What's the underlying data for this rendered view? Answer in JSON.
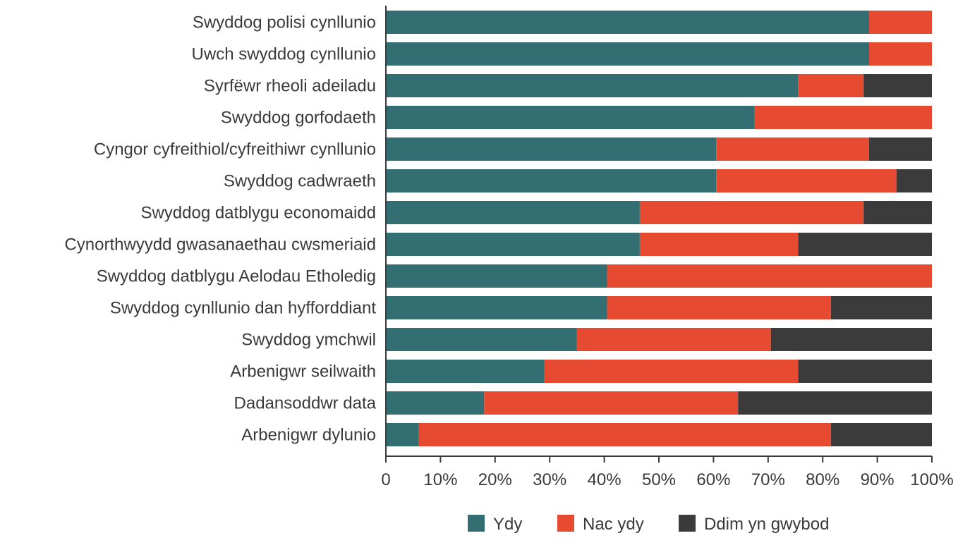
{
  "chart_data": {
    "type": "bar",
    "orientation": "horizontal",
    "stacked": true,
    "percent": true,
    "categories": [
      "Swyddog polisi cynllunio",
      "Uwch swyddog cynllunio",
      "Syrfëwr rheoli adeiladu",
      "Swyddog gorfodaeth",
      "Cyngor cyfreithiol/cyfreithiwr cynllunio",
      "Swyddog cadwraeth",
      "Swyddog datblygu economaidd",
      "Cynorthwyydd gwasanaethau cwsmeriaid",
      "Swyddog datblygu Aelodau Etholedig",
      "Swyddog cynllunio dan hyfforddiant",
      "Swyddog ymchwil",
      "Arbenigwr seilwaith",
      "Dadansoddwr data",
      "Arbenigwr dylunio"
    ],
    "series": [
      {
        "name": "Ydy",
        "color": "#336e73",
        "values": [
          88.5,
          88.5,
          75.5,
          67.5,
          60.5,
          60.5,
          46.5,
          46.5,
          40.5,
          40.5,
          35,
          29,
          18,
          6
        ]
      },
      {
        "name": "Nac ydy",
        "color": "#e64a31",
        "values": [
          11.5,
          11.5,
          12,
          32.5,
          28,
          33,
          41,
          29,
          59.5,
          41,
          35.5,
          46.5,
          46.5,
          75.5
        ]
      },
      {
        "name": "Ddim yn gwybod",
        "color": "#3b3b3b",
        "values": [
          0,
          0,
          12.5,
          0,
          11.5,
          6.5,
          12.5,
          24.5,
          0,
          18.5,
          29.5,
          24.5,
          35.5,
          18.5
        ]
      }
    ],
    "xticks": [
      "0",
      "10%",
      "20%",
      "30%",
      "40%",
      "50%",
      "60%",
      "70%",
      "80%",
      "90%",
      "100%"
    ],
    "xlim": [
      0,
      100
    ],
    "grid": false,
    "legend_position": "bottom"
  }
}
